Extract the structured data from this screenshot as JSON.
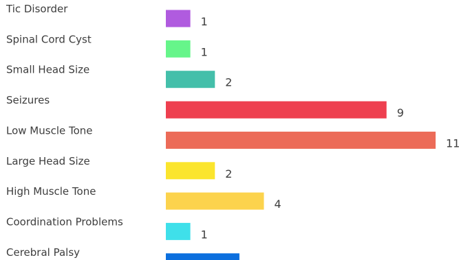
{
  "chart_data": {
    "type": "bar",
    "orientation": "horizontal",
    "title": "",
    "xlabel": "",
    "ylabel": "",
    "grid": false,
    "legend": "none",
    "xlim": [
      0,
      11
    ],
    "categories": [
      "Tic Disorder",
      "Spinal Cord Cyst",
      "Small Head Size",
      "Seizures",
      "Low Muscle Tone",
      "Large Head Size",
      "High Muscle Tone",
      "Coordination Problems",
      "Cerebral Palsy"
    ],
    "values": [
      1,
      1,
      2,
      9,
      11,
      2,
      4,
      1,
      3
    ],
    "colors": [
      "#b05bdf",
      "#66f58a",
      "#44bfaa",
      "#ee3f4f",
      "#ec6b58",
      "#fbe52d",
      "#fcd34d",
      "#3fe0ea",
      "#0c6fde"
    ]
  }
}
